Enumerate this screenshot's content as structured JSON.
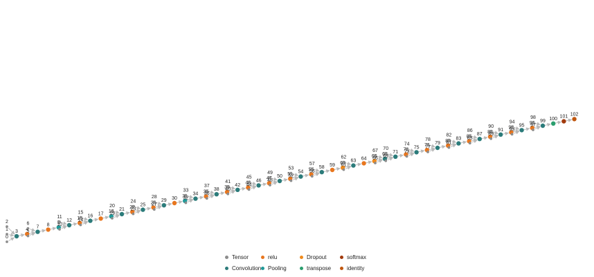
{
  "colors": {
    "Tensor": "#8c8c8c",
    "Convolution": "#2b7b7a",
    "Pooling": "#1f9a99",
    "relu": "#e8761e",
    "Dropout": "#ef8a1c",
    "transpose": "#2a9e6e",
    "softmax": "#a13a0c",
    "identity": "#c0560d"
  },
  "legend": [
    {
      "type": "Tensor",
      "label": "Tensor"
    },
    {
      "type": "relu",
      "label": "relu"
    },
    {
      "type": "Dropout",
      "label": "Dropout"
    },
    {
      "type": "softmax",
      "label": "softmax"
    },
    {
      "type": "Convolution",
      "label": "Convolution"
    },
    {
      "type": "Pooling",
      "label": "Pooling"
    },
    {
      "type": "transpose",
      "label": "transpose"
    },
    {
      "type": "identity",
      "label": "identity"
    }
  ],
  "graph": {
    "nodes": [
      {
        "id": "0",
        "type": "Tensor"
      },
      {
        "id": "1",
        "type": "Tensor"
      },
      {
        "id": "2",
        "type": "Tensor"
      },
      {
        "id": "3",
        "type": "Convolution"
      },
      {
        "id": "4",
        "type": "relu"
      },
      {
        "id": "5",
        "type": "Tensor"
      },
      {
        "id": "6",
        "type": "Tensor"
      },
      {
        "id": "7",
        "type": "Convolution"
      },
      {
        "id": "8",
        "type": "relu"
      },
      {
        "id": "9",
        "type": "Pooling"
      },
      {
        "id": "10",
        "type": "Tensor"
      },
      {
        "id": "11",
        "type": "Tensor"
      },
      {
        "id": "12",
        "type": "Convolution"
      },
      {
        "id": "13",
        "type": "relu"
      },
      {
        "id": "14",
        "type": "Tensor"
      },
      {
        "id": "15",
        "type": "Tensor"
      },
      {
        "id": "16",
        "type": "Convolution"
      },
      {
        "id": "17",
        "type": "relu"
      },
      {
        "id": "18",
        "type": "Pooling"
      },
      {
        "id": "19",
        "type": "Tensor"
      },
      {
        "id": "20",
        "type": "Tensor"
      },
      {
        "id": "21",
        "type": "Convolution"
      },
      {
        "id": "22",
        "type": "relu"
      },
      {
        "id": "23",
        "type": "Tensor"
      },
      {
        "id": "24",
        "type": "Tensor"
      },
      {
        "id": "25",
        "type": "Convolution"
      },
      {
        "id": "26",
        "type": "relu"
      },
      {
        "id": "27",
        "type": "Tensor"
      },
      {
        "id": "28",
        "type": "Tensor"
      },
      {
        "id": "29",
        "type": "Convolution"
      },
      {
        "id": "30",
        "type": "relu"
      },
      {
        "id": "31",
        "type": "Pooling"
      },
      {
        "id": "32",
        "type": "Tensor"
      },
      {
        "id": "33",
        "type": "Tensor"
      },
      {
        "id": "34",
        "type": "Convolution"
      },
      {
        "id": "35",
        "type": "relu"
      },
      {
        "id": "36",
        "type": "Tensor"
      },
      {
        "id": "37",
        "type": "Tensor"
      },
      {
        "id": "38",
        "type": "Convolution"
      },
      {
        "id": "39",
        "type": "relu"
      },
      {
        "id": "40",
        "type": "Tensor"
      },
      {
        "id": "41",
        "type": "Tensor"
      },
      {
        "id": "42",
        "type": "Convolution"
      },
      {
        "id": "43",
        "type": "relu"
      },
      {
        "id": "44",
        "type": "Tensor"
      },
      {
        "id": "45",
        "type": "Tensor"
      },
      {
        "id": "46",
        "type": "Convolution"
      },
      {
        "id": "47",
        "type": "relu"
      },
      {
        "id": "48",
        "type": "Tensor"
      },
      {
        "id": "49",
        "type": "Tensor"
      },
      {
        "id": "50",
        "type": "Convolution"
      },
      {
        "id": "51",
        "type": "relu"
      },
      {
        "id": "52",
        "type": "Tensor"
      },
      {
        "id": "53",
        "type": "Tensor"
      },
      {
        "id": "54",
        "type": "Convolution"
      },
      {
        "id": "55",
        "type": "relu"
      },
      {
        "id": "56",
        "type": "Tensor"
      },
      {
        "id": "57",
        "type": "Tensor"
      },
      {
        "id": "58",
        "type": "Convolution"
      },
      {
        "id": "59",
        "type": "relu"
      },
      {
        "id": "60",
        "type": "Dropout"
      },
      {
        "id": "61",
        "type": "Tensor"
      },
      {
        "id": "62",
        "type": "Tensor"
      },
      {
        "id": "63",
        "type": "Convolution"
      },
      {
        "id": "64",
        "type": "relu"
      },
      {
        "id": "65",
        "type": "Dropout"
      },
      {
        "id": "66",
        "type": "Tensor"
      },
      {
        "id": "67",
        "type": "Tensor"
      },
      {
        "id": "68",
        "type": "Convolution"
      },
      {
        "id": "69",
        "type": "Tensor"
      },
      {
        "id": "70",
        "type": "Tensor"
      },
      {
        "id": "71",
        "type": "Convolution"
      },
      {
        "id": "72",
        "type": "relu"
      },
      {
        "id": "73",
        "type": "Tensor"
      },
      {
        "id": "74",
        "type": "Tensor"
      },
      {
        "id": "75",
        "type": "Convolution"
      },
      {
        "id": "76",
        "type": "relu"
      },
      {
        "id": "77",
        "type": "Tensor"
      },
      {
        "id": "78",
        "type": "Tensor"
      },
      {
        "id": "79",
        "type": "Convolution"
      },
      {
        "id": "80",
        "type": "relu"
      },
      {
        "id": "81",
        "type": "Tensor"
      },
      {
        "id": "82",
        "type": "Tensor"
      },
      {
        "id": "83",
        "type": "Convolution"
      },
      {
        "id": "84",
        "type": "relu"
      },
      {
        "id": "85",
        "type": "Tensor"
      },
      {
        "id": "86",
        "type": "Tensor"
      },
      {
        "id": "87",
        "type": "Convolution"
      },
      {
        "id": "88",
        "type": "relu"
      },
      {
        "id": "89",
        "type": "Tensor"
      },
      {
        "id": "90",
        "type": "Tensor"
      },
      {
        "id": "91",
        "type": "Convolution"
      },
      {
        "id": "92",
        "type": "relu"
      },
      {
        "id": "93",
        "type": "Tensor"
      },
      {
        "id": "94",
        "type": "Tensor"
      },
      {
        "id": "95",
        "type": "Convolution"
      },
      {
        "id": "96",
        "type": "relu"
      },
      {
        "id": "97",
        "type": "Tensor"
      },
      {
        "id": "98",
        "type": "Tensor"
      },
      {
        "id": "99",
        "type": "Convolution"
      },
      {
        "id": "100",
        "type": "transpose"
      },
      {
        "id": "101",
        "type": "softmax"
      },
      {
        "id": "102",
        "type": "identity"
      }
    ],
    "edges": [
      [
        "0",
        "3"
      ],
      [
        "1",
        "3"
      ],
      [
        "2",
        "3"
      ],
      [
        "3",
        "4"
      ],
      [
        "4",
        "7"
      ],
      [
        "5",
        "7"
      ],
      [
        "6",
        "7"
      ],
      [
        "7",
        "8"
      ],
      [
        "8",
        "9"
      ],
      [
        "9",
        "12"
      ],
      [
        "10",
        "12"
      ],
      [
        "11",
        "12"
      ],
      [
        "12",
        "13"
      ],
      [
        "13",
        "16"
      ],
      [
        "14",
        "16"
      ],
      [
        "15",
        "16"
      ],
      [
        "16",
        "17"
      ],
      [
        "17",
        "18"
      ],
      [
        "18",
        "21"
      ],
      [
        "19",
        "21"
      ],
      [
        "20",
        "21"
      ],
      [
        "21",
        "22"
      ],
      [
        "22",
        "25"
      ],
      [
        "23",
        "25"
      ],
      [
        "24",
        "25"
      ],
      [
        "25",
        "26"
      ],
      [
        "26",
        "29"
      ],
      [
        "27",
        "29"
      ],
      [
        "28",
        "29"
      ],
      [
        "29",
        "30"
      ],
      [
        "30",
        "31"
      ],
      [
        "31",
        "34"
      ],
      [
        "32",
        "34"
      ],
      [
        "33",
        "34"
      ],
      [
        "34",
        "35"
      ],
      [
        "35",
        "38"
      ],
      [
        "36",
        "38"
      ],
      [
        "37",
        "38"
      ],
      [
        "38",
        "39"
      ],
      [
        "39",
        "42"
      ],
      [
        "40",
        "42"
      ],
      [
        "41",
        "42"
      ],
      [
        "42",
        "43"
      ],
      [
        "43",
        "46"
      ],
      [
        "44",
        "46"
      ],
      [
        "45",
        "46"
      ],
      [
        "46",
        "47"
      ],
      [
        "47",
        "50"
      ],
      [
        "48",
        "50"
      ],
      [
        "49",
        "50"
      ],
      [
        "50",
        "51"
      ],
      [
        "51",
        "54"
      ],
      [
        "52",
        "54"
      ],
      [
        "53",
        "54"
      ],
      [
        "54",
        "55"
      ],
      [
        "55",
        "58"
      ],
      [
        "56",
        "58"
      ],
      [
        "57",
        "58"
      ],
      [
        "58",
        "59"
      ],
      [
        "59",
        "60"
      ],
      [
        "60",
        "63"
      ],
      [
        "61",
        "63"
      ],
      [
        "62",
        "63"
      ],
      [
        "63",
        "64"
      ],
      [
        "64",
        "65"
      ],
      [
        "65",
        "68"
      ],
      [
        "66",
        "68"
      ],
      [
        "67",
        "68"
      ],
      [
        "68",
        "71"
      ],
      [
        "69",
        "71"
      ],
      [
        "70",
        "71"
      ],
      [
        "71",
        "72"
      ],
      [
        "72",
        "75"
      ],
      [
        "73",
        "75"
      ],
      [
        "74",
        "75"
      ],
      [
        "75",
        "76"
      ],
      [
        "76",
        "79"
      ],
      [
        "77",
        "79"
      ],
      [
        "78",
        "79"
      ],
      [
        "79",
        "80"
      ],
      [
        "80",
        "83"
      ],
      [
        "81",
        "83"
      ],
      [
        "82",
        "83"
      ],
      [
        "83",
        "84"
      ],
      [
        "84",
        "87"
      ],
      [
        "85",
        "87"
      ],
      [
        "86",
        "87"
      ],
      [
        "87",
        "88"
      ],
      [
        "88",
        "91"
      ],
      [
        "89",
        "91"
      ],
      [
        "90",
        "91"
      ],
      [
        "91",
        "92"
      ],
      [
        "92",
        "95"
      ],
      [
        "93",
        "95"
      ],
      [
        "94",
        "95"
      ],
      [
        "95",
        "96"
      ],
      [
        "96",
        "99"
      ],
      [
        "97",
        "99"
      ],
      [
        "98",
        "99"
      ],
      [
        "99",
        "100"
      ],
      [
        "100",
        "101"
      ],
      [
        "101",
        "102"
      ]
    ]
  }
}
